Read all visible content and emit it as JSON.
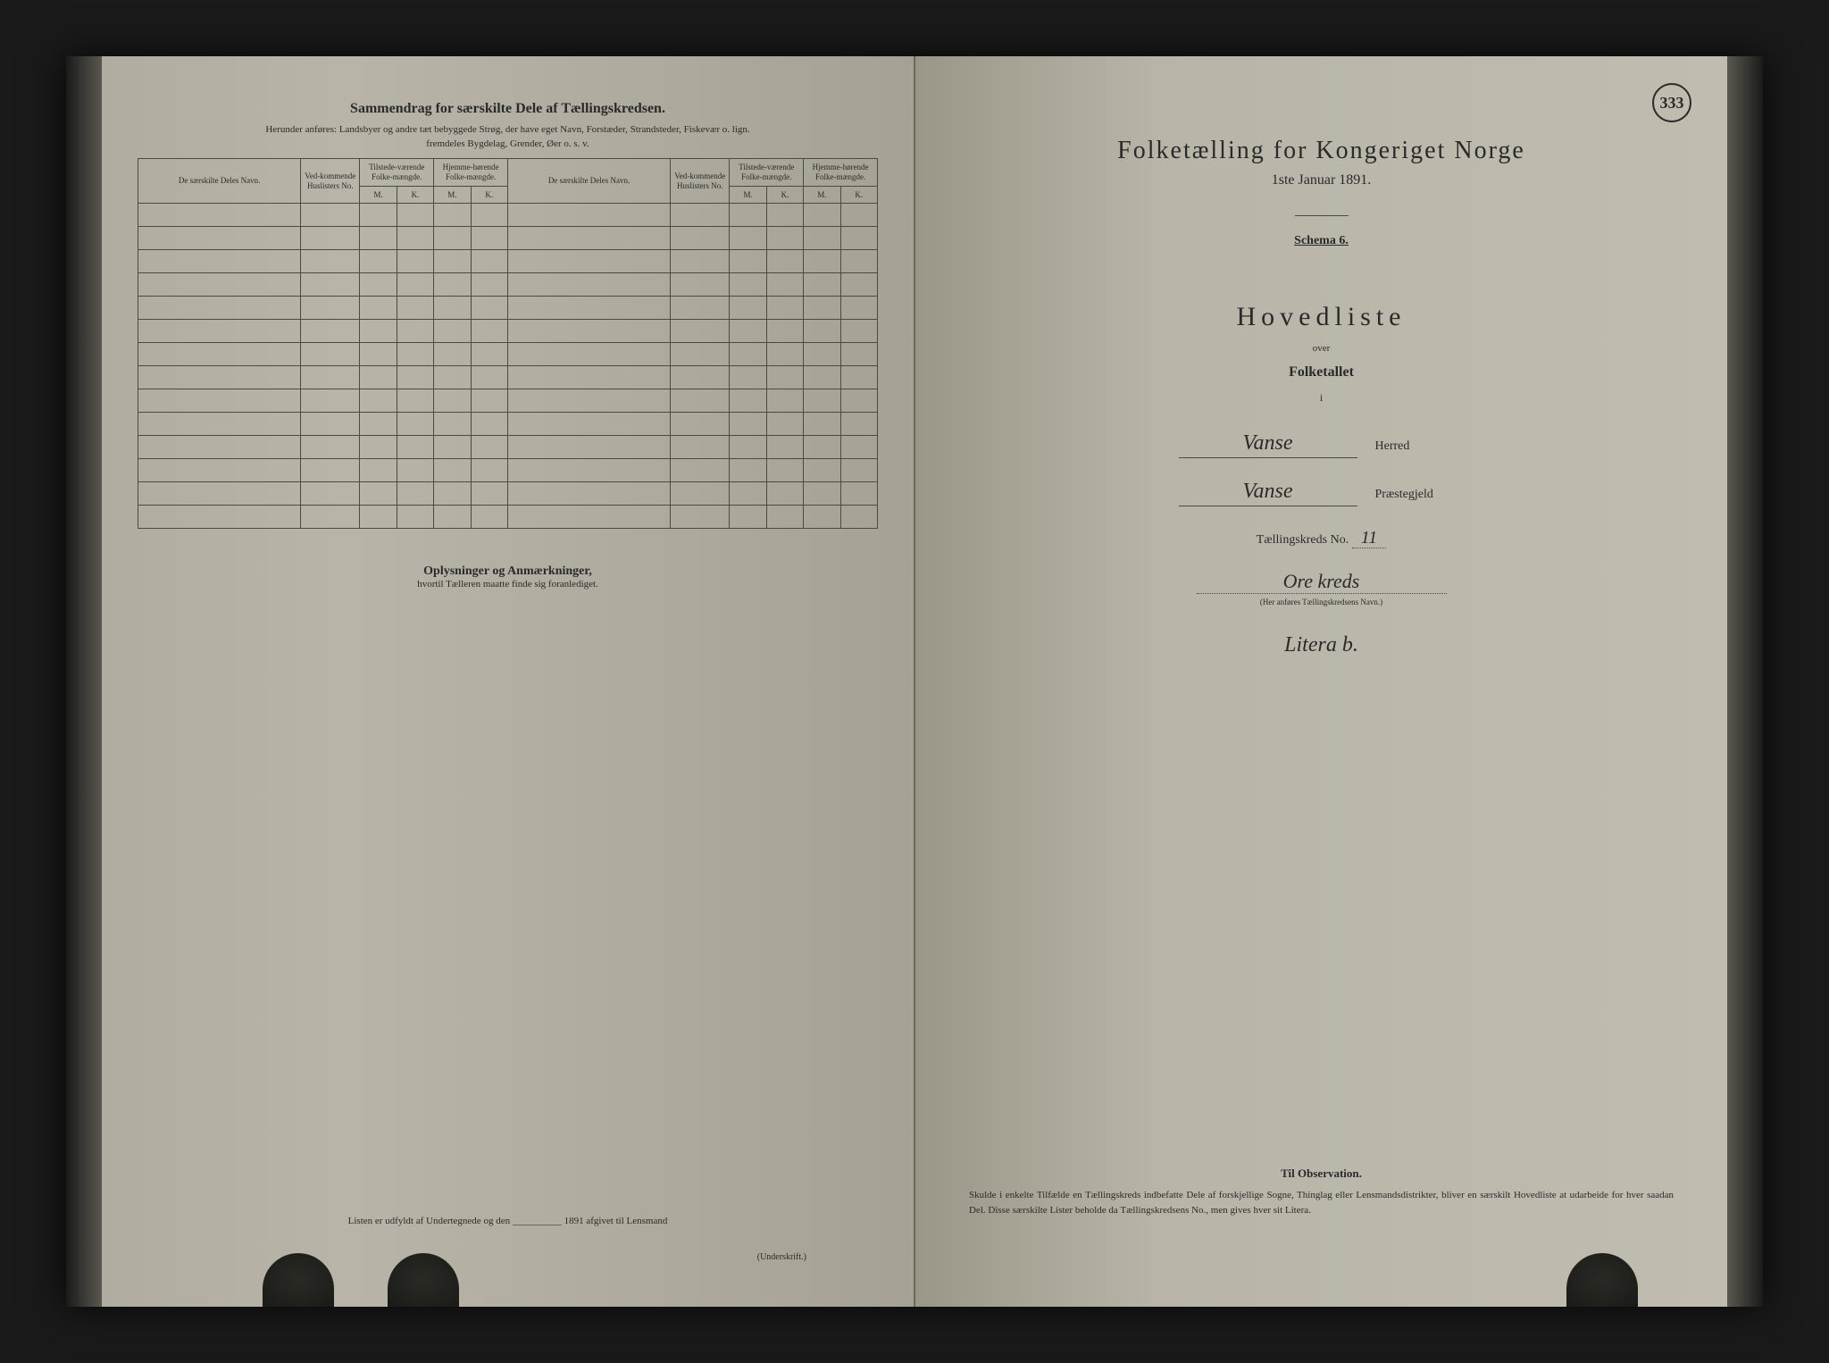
{
  "page_number": "333",
  "left_page": {
    "title": "Sammendrag for særskilte Dele af Tællingskredsen.",
    "subtitle1": "Herunder anføres: Landsbyer og andre tæt bebyggede Strøg, der have eget Navn, Forstæder, Strandsteder, Fiskevær o. lign.",
    "subtitle2": "fremdeles Bygdelag, Grender, Øer o. s. v.",
    "table_headers": {
      "col1": "De særskilte Deles Navn.",
      "col2": "Ved-kommende Huslisters No.",
      "col3": "Tilstede-værende Folke-mængde.",
      "col4": "Hjemme-hørende Folke-mængde.",
      "col5": "De særskilte Deles Navn.",
      "col6": "Ved-kommende Huslisters No.",
      "col7": "Tilstede-værende Folke-mængde.",
      "col8": "Hjemme-hørende Folke-mængde.",
      "m": "M.",
      "k": "K."
    },
    "oplysninger_title": "Oplysninger og Anmærkninger,",
    "oplysninger_sub": "hvortil Tælleren maatte finde sig foranlediget.",
    "footer": "Listen er udfyldt af Undertegnede og den __________ 1891 afgivet til Lensmand",
    "underskrift": "(Underskrift.)"
  },
  "right_page": {
    "census_title": "Folketælling for Kongeriget Norge",
    "census_date": "1ste Januar 1891.",
    "schema": "Schema 6.",
    "hovedliste": "Hovedliste",
    "over": "over",
    "folketallet": "Folketallet",
    "i": "i",
    "herred_value": "Vanse",
    "herred_label": "Herred",
    "praestegjeld_value": "Vanse",
    "praestegjeld_label": "Præstegjeld",
    "kreds_label": "Tællingskreds No.",
    "kreds_no": "11",
    "kreds_name": "Ore kreds",
    "kreds_hint": "(Her anføres Tællingskredsens Navn.)",
    "litera": "Litera b.",
    "obs_title": "Til Observation.",
    "obs_text": "Skulde i enkelte Tilfælde en Tællingskreds indbefatte Dele af forskjellige Sogne, Thinglag eller Lensmandsdistrikter, bliver en særskilt Hovedliste at udarbeide for hver saadan Del. Disse særskilte Lister beholde da Tællingskredsens No., men gives hver sit Litera."
  },
  "colors": {
    "paper": "#b8b5a8",
    "ink": "#2a2a2a",
    "border": "#4a4a42",
    "background": "#1a1a1a"
  }
}
